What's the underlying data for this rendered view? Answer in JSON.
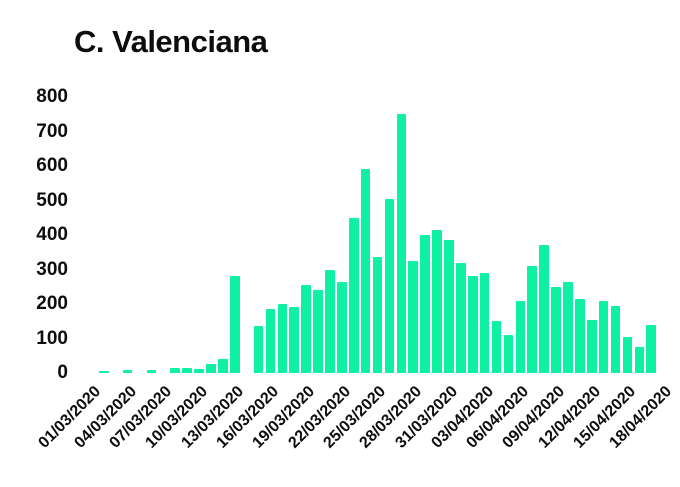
{
  "title": "C. Valenciana",
  "colors": {
    "bar": "#0EF0A2",
    "text": "#0d0d0d",
    "background": "#ffffff"
  },
  "chart_data": {
    "type": "bar",
    "title": "C. Valenciana",
    "xlabel": "",
    "ylabel": "",
    "ylim": [
      0,
      800
    ],
    "yticks": [
      0,
      100,
      200,
      300,
      400,
      500,
      600,
      700,
      800
    ],
    "grid": false,
    "legend": false,
    "x_tick_rotation": 45,
    "x_tick_step": 3,
    "categories": [
      "01/03/2020",
      "02/03/2020",
      "03/03/2020",
      "04/03/2020",
      "05/03/2020",
      "06/03/2020",
      "07/03/2020",
      "08/03/2020",
      "09/03/2020",
      "10/03/2020",
      "11/03/2020",
      "12/03/2020",
      "13/03/2020",
      "14/03/2020",
      "15/03/2020",
      "16/03/2020",
      "17/03/2020",
      "18/03/2020",
      "19/03/2020",
      "20/03/2020",
      "21/03/2020",
      "22/03/2020",
      "23/03/2020",
      "24/03/2020",
      "25/03/2020",
      "26/03/2020",
      "27/03/2020",
      "28/03/2020",
      "29/03/2020",
      "30/03/2020",
      "31/03/2020",
      "01/04/2020",
      "02/04/2020",
      "03/04/2020",
      "04/04/2020",
      "05/04/2020",
      "06/04/2020",
      "07/04/2020",
      "08/04/2020",
      "09/04/2020",
      "10/04/2020",
      "11/04/2020",
      "12/04/2020",
      "13/04/2020",
      "14/04/2020",
      "15/04/2020",
      "16/04/2020",
      "17/04/2020",
      "18/04/2020"
    ],
    "values": [
      0,
      5,
      0,
      10,
      0,
      8,
      0,
      15,
      15,
      12,
      25,
      40,
      280,
      0,
      135,
      185,
      200,
      190,
      255,
      240,
      300,
      265,
      450,
      590,
      335,
      505,
      750,
      325,
      400,
      415,
      385,
      320,
      280,
      290,
      150,
      110,
      210,
      310,
      370,
      250,
      265,
      215,
      155,
      210,
      195,
      105,
      75,
      140,
      0
    ],
    "shown_x_tick_labels": [
      "01/03/2020",
      "04/03/2020",
      "07/03/2020",
      "10/03/2020",
      "13/03/2020",
      "16/03/2020",
      "19/03/2020",
      "22/03/2020",
      "25/03/2020",
      "28/03/2020",
      "31/03/2020",
      "03/04/2020",
      "06/04/2020",
      "09/04/2020",
      "12/04/2020",
      "15/04/2020",
      "18/04/2020"
    ]
  }
}
